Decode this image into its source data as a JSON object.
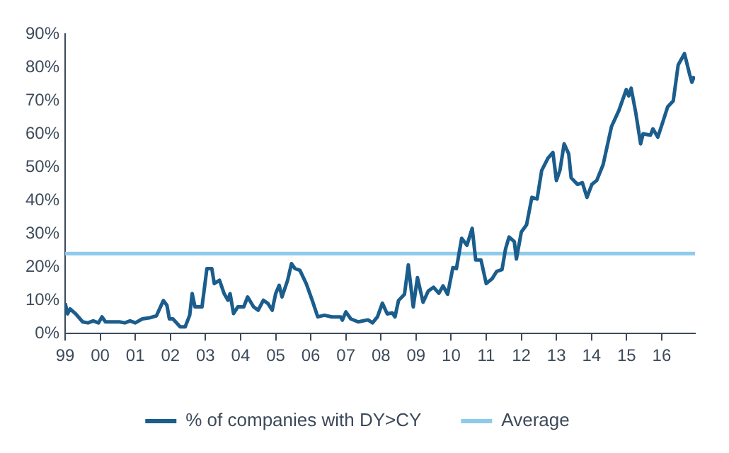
{
  "chart_data": {
    "type": "line",
    "series": [
      {
        "name": "% of companies with DY>CY",
        "color": "#1b5d8c",
        "x": [
          1999.0,
          1999.07,
          1999.14,
          1999.3,
          1999.5,
          1999.65,
          1999.8,
          1999.95,
          2000.05,
          2000.15,
          2000.55,
          2000.7,
          2000.85,
          2001.0,
          2001.2,
          2001.4,
          2001.6,
          2001.8,
          2001.9,
          2001.97,
          2002.07,
          2002.28,
          2002.42,
          2002.55,
          2002.62,
          2002.7,
          2002.9,
          2003.04,
          2003.18,
          2003.25,
          2003.4,
          2003.53,
          2003.64,
          2003.7,
          2003.8,
          2003.92,
          2004.09,
          2004.2,
          2004.37,
          2004.5,
          2004.65,
          2004.78,
          2004.9,
          2005.0,
          2005.1,
          2005.18,
          2005.34,
          2005.45,
          2005.55,
          2005.69,
          2005.87,
          2006.04,
          2006.2,
          2006.39,
          2006.6,
          2006.85,
          2006.9,
          2007.0,
          2007.14,
          2007.35,
          2007.63,
          2007.76,
          2007.9,
          2008.04,
          2008.18,
          2008.32,
          2008.4,
          2008.5,
          2008.67,
          2008.78,
          2008.92,
          2009.04,
          2009.2,
          2009.35,
          2009.5,
          2009.65,
          2009.77,
          2009.9,
          2010.05,
          2010.15,
          2010.3,
          2010.45,
          2010.6,
          2010.7,
          2010.85,
          2011.0,
          2011.17,
          2011.3,
          2011.45,
          2011.55,
          2011.65,
          2011.8,
          2011.86,
          2012.0,
          2012.15,
          2012.3,
          2012.45,
          2012.58,
          2012.76,
          2012.9,
          2013.0,
          2013.1,
          2013.22,
          2013.35,
          2013.42,
          2013.6,
          2013.74,
          2013.87,
          2014.01,
          2014.15,
          2014.33,
          2014.57,
          2014.78,
          2014.99,
          2015.06,
          2015.13,
          2015.26,
          2015.4,
          2015.47,
          2015.68,
          2015.75,
          2015.89,
          2016.0,
          2016.17,
          2016.33,
          2016.47,
          2016.65,
          2016.8,
          2016.86,
          2016.93
        ],
        "values": [
          9.1,
          5.9,
          7.4,
          5.9,
          3.5,
          3.2,
          3.8,
          3.2,
          5,
          3.5,
          3.5,
          3.2,
          3.8,
          3.2,
          4.4,
          4.7,
          5.3,
          9.9,
          8.5,
          4.4,
          4.4,
          2,
          2,
          5.5,
          12,
          8,
          8,
          19.5,
          19.5,
          15,
          16,
          12,
          10,
          12,
          6,
          8,
          8,
          11,
          8,
          7,
          10,
          9,
          7,
          12,
          14.5,
          11,
          16,
          21,
          19.5,
          19,
          15,
          10,
          5,
          5.5,
          5,
          5,
          4,
          6.5,
          4.4,
          3.5,
          4.1,
          3.2,
          5,
          9.1,
          5.9,
          6.2,
          5,
          9.9,
          11.8,
          20.6,
          8,
          16.8,
          9.4,
          12.8,
          13.9,
          12.1,
          14.3,
          11.8,
          19.8,
          19.5,
          28.6,
          26.5,
          31.6,
          22.1,
          22.1,
          15,
          16.5,
          18.7,
          19.2,
          25.4,
          29,
          27.6,
          22.4,
          30.5,
          32.7,
          40.9,
          40.4,
          49,
          52.7,
          54.4,
          46,
          49,
          57,
          54,
          46.8,
          44.8,
          45.3,
          40.9,
          44.8,
          46,
          50.7,
          62.2,
          67,
          73.3,
          71.4,
          73.7,
          66.4,
          57,
          60,
          59.6,
          61.5,
          59,
          62.5,
          68.1,
          69.9,
          80.7,
          84.1,
          77.7,
          75.5,
          77.3
        ]
      },
      {
        "name": "Average",
        "color": "#8ecbeb",
        "x": [
          1999.0,
          2016.95
        ],
        "values": [
          24,
          24
        ]
      }
    ],
    "xlim": [
      1999,
      2016.95
    ],
    "xticks": [
      {
        "value": 1999,
        "label": "99"
      },
      {
        "value": 2000,
        "label": "00"
      },
      {
        "value": 2001,
        "label": "01"
      },
      {
        "value": 2002,
        "label": "02"
      },
      {
        "value": 2003,
        "label": "03"
      },
      {
        "value": 2004,
        "label": "04"
      },
      {
        "value": 2005,
        "label": "05"
      },
      {
        "value": 2006,
        "label": "06"
      },
      {
        "value": 2007,
        "label": "07"
      },
      {
        "value": 2008,
        "label": "08"
      },
      {
        "value": 2009,
        "label": "09"
      },
      {
        "value": 2010,
        "label": "10"
      },
      {
        "value": 2011,
        "label": "11"
      },
      {
        "value": 2012,
        "label": "12"
      },
      {
        "value": 2013,
        "label": "13"
      },
      {
        "value": 2014,
        "label": "14"
      },
      {
        "value": 2015,
        "label": "15"
      },
      {
        "value": 2016,
        "label": "16"
      }
    ],
    "ylim": [
      0,
      90
    ],
    "yticks": [
      {
        "value": 0,
        "label": "0%"
      },
      {
        "value": 10,
        "label": "10%"
      },
      {
        "value": 20,
        "label": "20%"
      },
      {
        "value": 30,
        "label": "30%"
      },
      {
        "value": 40,
        "label": "40%"
      },
      {
        "value": 50,
        "label": "50%"
      },
      {
        "value": 60,
        "label": "60%"
      },
      {
        "value": 70,
        "label": "70%"
      },
      {
        "value": 80,
        "label": "80%"
      },
      {
        "value": 90,
        "label": "90%"
      }
    ],
    "grid": false,
    "legend": "bottom",
    "marker": "none",
    "line_style": "solid"
  }
}
